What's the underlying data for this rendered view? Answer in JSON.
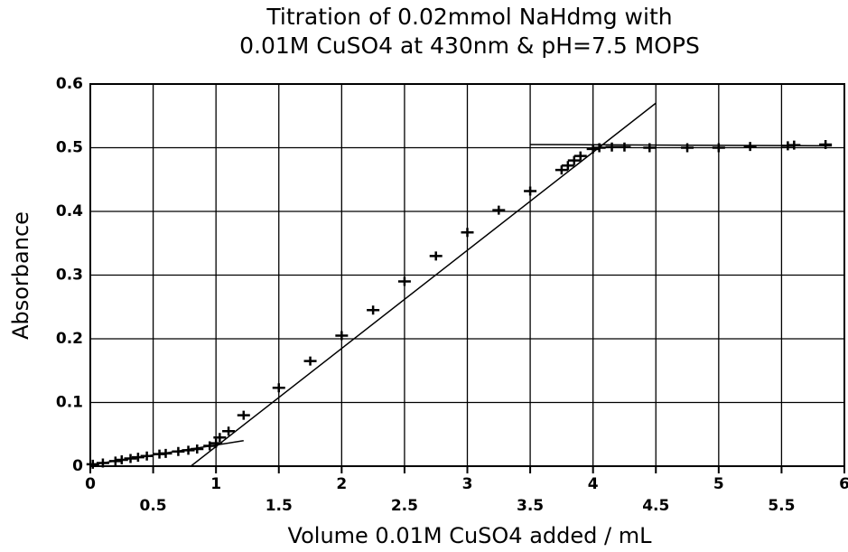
{
  "chart_data": {
    "type": "scatter",
    "title": [
      "Titration of 0.02mmol NaHdmg with",
      "0.01M CuSO4 at 430nm & pH=7.5 MOPS"
    ],
    "xlabel": "Volume 0.01M CuSO4 added / mL",
    "ylabel": "Absorbance",
    "xlim": [
      0,
      6
    ],
    "ylim": [
      0,
      0.6
    ],
    "xticks": [
      0,
      0.5,
      1,
      1.5,
      2,
      2.5,
      3,
      3.5,
      4,
      4.5,
      5,
      5.5,
      6
    ],
    "yticks": [
      0,
      0.1,
      0.2,
      0.3,
      0.4,
      0.5,
      0.6
    ],
    "grid": true,
    "color": "#000000",
    "series": [
      {
        "x": [
          0.02,
          0.1,
          0.2,
          0.25,
          0.32,
          0.38,
          0.45,
          0.55,
          0.6,
          0.7,
          0.78,
          0.85,
          0.95,
          1.0,
          1.03,
          1.1,
          1.22,
          1.5,
          1.75,
          2.0,
          2.25,
          2.5,
          2.75,
          3.0,
          3.25,
          3.5,
          3.75,
          3.8,
          3.85,
          3.9,
          4.0,
          4.05,
          4.15,
          4.25,
          4.45,
          4.75,
          5.0,
          5.25,
          5.55,
          5.6,
          5.85
        ],
        "values": [
          0.003,
          0.005,
          0.008,
          0.01,
          0.012,
          0.014,
          0.016,
          0.019,
          0.02,
          0.023,
          0.025,
          0.027,
          0.032,
          0.036,
          0.045,
          0.055,
          0.08,
          0.123,
          0.165,
          0.205,
          0.245,
          0.29,
          0.33,
          0.367,
          0.402,
          0.432,
          0.465,
          0.472,
          0.48,
          0.487,
          0.498,
          0.5,
          0.501,
          0.501,
          0.5,
          0.5,
          0.5,
          0.502,
          0.503,
          0.504,
          0.505
        ]
      }
    ],
    "lines": [
      {
        "x": [
          0,
          1.22
        ],
        "values": [
          0.002,
          0.04
        ]
      },
      {
        "x": [
          0.8,
          4.5
        ],
        "values": [
          0,
          0.57
        ]
      },
      {
        "x": [
          3.5,
          5.9
        ],
        "values": [
          0.505,
          0.503
        ]
      }
    ]
  }
}
